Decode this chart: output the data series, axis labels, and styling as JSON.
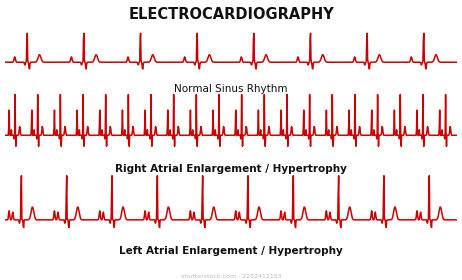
{
  "title": "ELECTROCARDIOGRAPHY",
  "title_color": "#111111",
  "title_underline_color": "#cc0000",
  "ecg_color": "#cc0000",
  "background_color": "#ffffff",
  "labels": [
    "Normal Sinus Rhythm",
    "Right Atrial Enlargement / Hypertrophy",
    "Left Atrial Enlargement / Hypertrophy"
  ],
  "label_color": "#111111",
  "watermark": "shutterstock.com · 2282412153",
  "watermark_color": "#bbbbbb",
  "label_fontsize": 7.5,
  "title_fontsize": 10.5
}
